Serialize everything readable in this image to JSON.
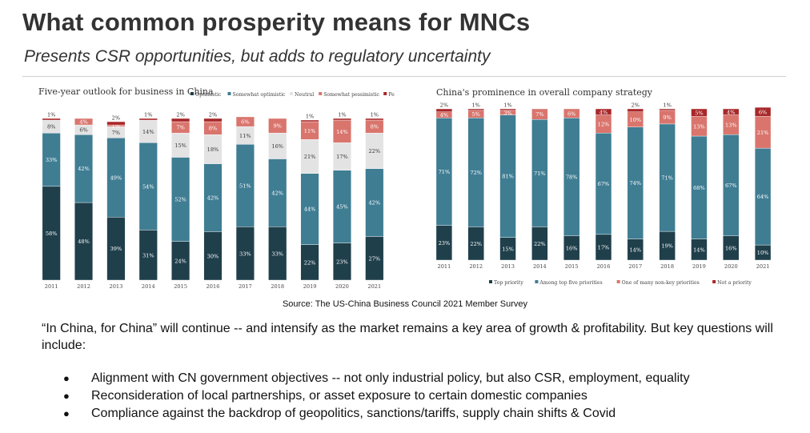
{
  "slide": {
    "title": "What common prosperity means for MNCs",
    "subtitle": "Presents CSR opportunities, but adds to regulatory uncertainty",
    "source": "Source: The US-China Business Council 2021 Member Survey",
    "paragraph": "“In China, for China” will continue -- and intensify as the market remains a key area of growth & profitability. But key questions will include:",
    "bullets": [
      "Alignment with CN government objectives -- not only industrial policy, but also CSR, employment, equality",
      "Reconsideration of local partnerships, or asset exposure to certain domestic companies",
      "Compliance against the backdrop of geopolitics, sanctions/tariffs, supply chain shifts & Covid"
    ],
    "bullet_glyph": "●"
  },
  "chart_data": [
    {
      "type": "bar",
      "stacked": true,
      "title": "Five-year outlook for business in China",
      "categories": [
        "2011",
        "2012",
        "2013",
        "2014",
        "2015",
        "2016",
        "2017",
        "2018",
        "2019",
        "2020",
        "2021"
      ],
      "ylim": [
        0,
        100
      ],
      "grid": false,
      "legend_position": "top",
      "series": [
        {
          "name": "Optimistic",
          "color": "#1f3f4b",
          "values": [
            58,
            48,
            39,
            31,
            24,
            30,
            33,
            33,
            22,
            23,
            27
          ]
        },
        {
          "name": "Somewhat optimistic",
          "color": "#3f7d93",
          "values": [
            33,
            42,
            49,
            54,
            52,
            42,
            51,
            42,
            44,
            45,
            42
          ]
        },
        {
          "name": "Neutral",
          "color": "#e3e3e3",
          "values": [
            8,
            6,
            7,
            14,
            15,
            18,
            11,
            16,
            21,
            17,
            22
          ]
        },
        {
          "name": "Somewhat pessimistic",
          "color": "#d9756d",
          "values": [
            0,
            4,
            1,
            0,
            7,
            8,
            6,
            9,
            11,
            14,
            8
          ]
        },
        {
          "name": "Pessimistic",
          "color": "#a8282a",
          "values": [
            1,
            0,
            2,
            1,
            2,
            2,
            0,
            0,
            1,
            1,
            1
          ]
        }
      ]
    },
    {
      "type": "bar",
      "stacked": true,
      "title": "China's prominence in overall company strategy",
      "categories": [
        "2011",
        "2012",
        "2013",
        "2014",
        "2015",
        "2016",
        "2017",
        "2018",
        "2019",
        "2020",
        "2021"
      ],
      "ylim": [
        0,
        100
      ],
      "grid": false,
      "legend_position": "bottom",
      "series": [
        {
          "name": "Top priority",
          "color": "#1f3f4b",
          "values": [
            23,
            22,
            15,
            22,
            16,
            17,
            14,
            19,
            14,
            16,
            10
          ]
        },
        {
          "name": "Among top five priorities",
          "color": "#3f7d93",
          "values": [
            71,
            72,
            81,
            71,
            78,
            67,
            74,
            71,
            68,
            67,
            64
          ]
        },
        {
          "name": "One of many non-key priorities",
          "color": "#d9756d",
          "values": [
            4,
            5,
            3,
            7,
            6,
            12,
            10,
            9,
            13,
            13,
            21
          ]
        },
        {
          "name": "Not a priority",
          "color": "#a8282a",
          "values": [
            2,
            1,
            1,
            0,
            0,
            4,
            2,
            1,
            5,
            4,
            6
          ]
        }
      ]
    }
  ]
}
